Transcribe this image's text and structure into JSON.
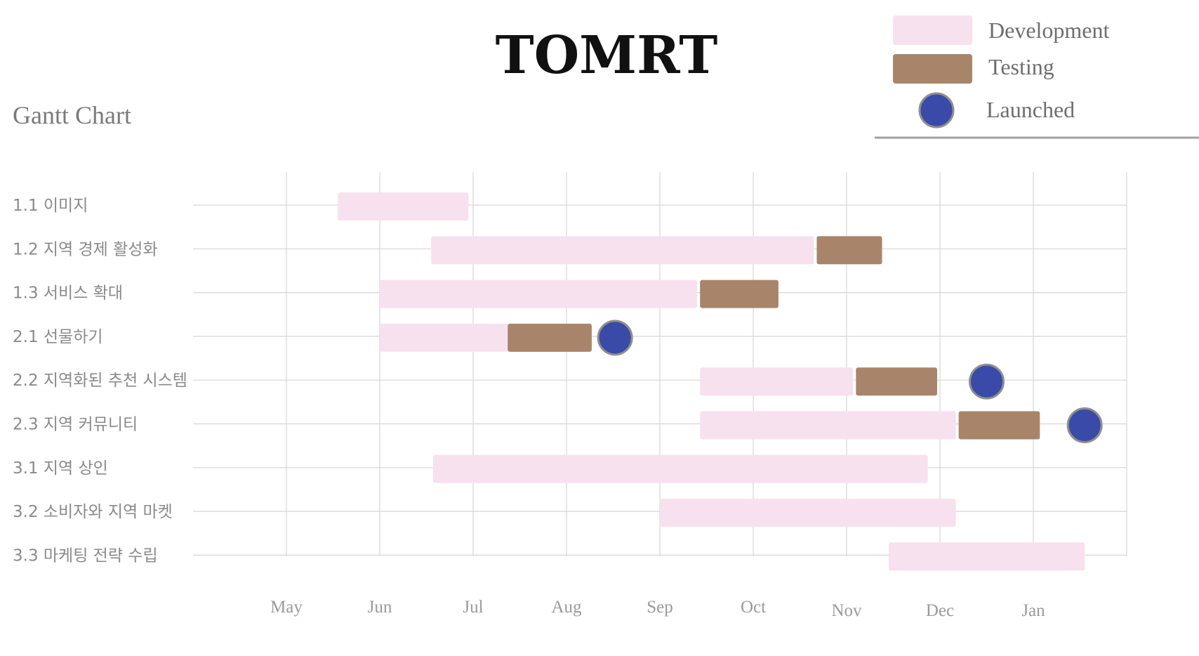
{
  "chart_data": {
    "type": "gantt",
    "title": "TOMRT",
    "subtitle": "Gantt Chart",
    "legend": [
      {
        "key": "development",
        "label": "Development",
        "color": "#f7e1ee"
      },
      {
        "key": "testing",
        "label": "Testing",
        "color": "#a8856a"
      },
      {
        "key": "launched",
        "label": "Launched",
        "color": "#3a4aa8"
      }
    ],
    "legend_position": "top-right",
    "months": [
      "May",
      "Jun",
      "Jul",
      "Aug",
      "Sep",
      "Oct",
      "Nov",
      "Dec",
      "Jan"
    ],
    "grid": true,
    "tasks": [
      {
        "label": "1.1 이미지",
        "development": [
          0.55,
          1.95
        ]
      },
      {
        "label": "1.2 지역 경제 활성화",
        "development": [
          1.55,
          5.65
        ],
        "testing": [
          5.68,
          6.38
        ]
      },
      {
        "label": "1.3 서비스 확대",
        "development": [
          1.0,
          4.4
        ],
        "testing": [
          4.43,
          5.27
        ]
      },
      {
        "label": "2.1 선물하기",
        "development": [
          1.0,
          2.37
        ],
        "testing": [
          2.37,
          3.27
        ],
        "launched": 3.52
      },
      {
        "label": "2.2 지역화된 추천 시스템",
        "development": [
          4.43,
          6.07
        ],
        "testing": [
          6.1,
          6.97
        ],
        "launched": 7.5
      },
      {
        "label": "2.3 지역 커뮤니티",
        "development": [
          4.43,
          7.17
        ],
        "testing": [
          7.2,
          8.07
        ],
        "launched": 8.55
      },
      {
        "label": "3.1 지역 상인",
        "development": [
          1.57,
          6.87
        ]
      },
      {
        "label": "3.2 소비자와 지역 마켓",
        "development": [
          4.0,
          7.17
        ]
      },
      {
        "label": "3.3 마케팅 전략 수립",
        "development": [
          6.45,
          8.55
        ]
      }
    ]
  }
}
